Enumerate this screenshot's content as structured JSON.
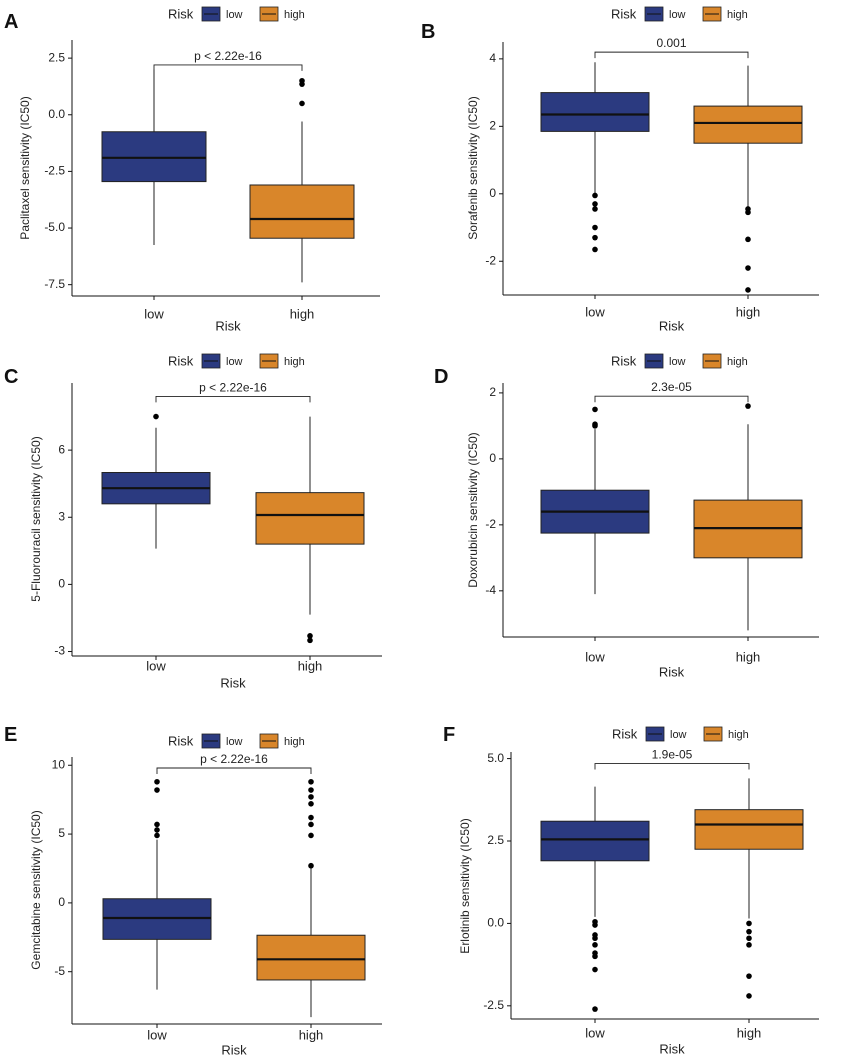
{
  "figure": {
    "legend": {
      "title": "Risk",
      "items": [
        {
          "label": "low",
          "color": "#2B3A80"
        },
        {
          "label": "high",
          "color": "#D9862A"
        }
      ]
    }
  },
  "chart_data": [
    {
      "panel": "A",
      "type": "boxplot",
      "ylabel": "Paclitaxel sensitivity (IC50)",
      "xlabel": "Risk",
      "categories": [
        "low",
        "high"
      ],
      "ylim": [
        -8.0,
        3.3
      ],
      "yticks": [
        -7.5,
        -5.0,
        -2.5,
        0.0,
        2.5
      ],
      "ytick_labels": [
        "-7.5",
        "-5.0",
        "-2.5",
        "0.0",
        "2.5"
      ],
      "pvalue": "p < 2.22e-16",
      "bracket_y": 2.2,
      "boxes": [
        {
          "group": "low",
          "whisker_low": -5.75,
          "q1": -2.95,
          "median": -1.9,
          "q3": -0.75,
          "whisker_high": 2.0,
          "outliers": []
        },
        {
          "group": "high",
          "whisker_low": -7.4,
          "q1": -5.45,
          "median": -4.6,
          "q3": -3.1,
          "whisker_high": -0.3,
          "outliers": [
            0.5,
            1.35,
            1.5
          ]
        }
      ]
    },
    {
      "panel": "B",
      "type": "boxplot",
      "ylabel": "Sorafenib sensitivity (IC50)",
      "xlabel": "Risk",
      "categories": [
        "low",
        "high"
      ],
      "ylim": [
        -3.0,
        4.5
      ],
      "yticks": [
        -2,
        0,
        2,
        4
      ],
      "ytick_labels": [
        "-2",
        "0",
        "2",
        "4"
      ],
      "pvalue": "0.001",
      "bracket_y": 4.2,
      "boxes": [
        {
          "group": "low",
          "whisker_low": -0.05,
          "q1": 1.85,
          "median": 2.35,
          "q3": 3.0,
          "whisker_high": 3.9,
          "outliers": [
            -0.05,
            -0.3,
            -0.45,
            -1.0,
            -1.3,
            -1.65
          ]
        },
        {
          "group": "high",
          "whisker_low": -0.5,
          "q1": 1.5,
          "median": 2.1,
          "q3": 2.6,
          "whisker_high": 3.8,
          "outliers": [
            -0.45,
            -0.55,
            -1.35,
            -2.2,
            -2.85
          ]
        }
      ]
    },
    {
      "panel": "C",
      "type": "boxplot",
      "ylabel": "5-Fluorouracil sensitivity (IC50)",
      "xlabel": "Risk",
      "categories": [
        "low",
        "high"
      ],
      "ylim": [
        -3.2,
        9.0
      ],
      "yticks": [
        -3,
        0,
        3,
        6
      ],
      "ytick_labels": [
        "-3",
        "0",
        "3",
        "6"
      ],
      "pvalue": "p < 2.22e-16",
      "bracket_y": 8.4,
      "boxes": [
        {
          "group": "low",
          "whisker_low": 1.6,
          "q1": 3.6,
          "median": 4.3,
          "q3": 5.0,
          "whisker_high": 7.0,
          "outliers": [
            7.5
          ]
        },
        {
          "group": "high",
          "whisker_low": -1.35,
          "q1": 1.8,
          "median": 3.1,
          "q3": 4.1,
          "whisker_high": 7.5,
          "outliers": [
            -2.3,
            -2.5
          ]
        }
      ]
    },
    {
      "panel": "D",
      "type": "boxplot",
      "ylabel": "Doxorubicin sensitivity (IC50)",
      "xlabel": "Risk",
      "categories": [
        "low",
        "high"
      ],
      "ylim": [
        -5.4,
        2.3
      ],
      "yticks": [
        -4,
        -2,
        0,
        2
      ],
      "ytick_labels": [
        "-4",
        "-2",
        "0",
        "2"
      ],
      "pvalue": "2.3e-05",
      "bracket_y": 1.9,
      "boxes": [
        {
          "group": "low",
          "whisker_low": -4.1,
          "q1": -2.25,
          "median": -1.6,
          "q3": -0.95,
          "whisker_high": 0.9,
          "outliers": [
            1.0,
            1.05,
            1.5
          ]
        },
        {
          "group": "high",
          "whisker_low": -5.2,
          "q1": -3.0,
          "median": -2.1,
          "q3": -1.25,
          "whisker_high": 1.05,
          "outliers": [
            1.6
          ]
        }
      ]
    },
    {
      "panel": "E",
      "type": "boxplot",
      "ylabel": "Gemcitabine sensitivity (IC50)",
      "xlabel": "Risk",
      "categories": [
        "low",
        "high"
      ],
      "ylim": [
        -8.8,
        10.6
      ],
      "yticks": [
        -5,
        0,
        5,
        10
      ],
      "ytick_labels": [
        "-5",
        "0",
        "5",
        "10"
      ],
      "pvalue": "p < 2.22e-16",
      "bracket_y": 9.8,
      "boxes": [
        {
          "group": "low",
          "whisker_low": -6.3,
          "q1": -2.65,
          "median": -1.1,
          "q3": 0.3,
          "whisker_high": 4.6,
          "outliers": [
            4.9,
            5.3,
            5.7,
            8.2,
            8.8
          ]
        },
        {
          "group": "high",
          "whisker_low": -8.3,
          "q1": -5.6,
          "median": -4.1,
          "q3": -2.35,
          "whisker_high": 2.7,
          "outliers": [
            2.7,
            4.9,
            5.7,
            6.2,
            7.2,
            7.7,
            8.2,
            8.8
          ]
        }
      ]
    },
    {
      "panel": "F",
      "type": "boxplot",
      "ylabel": "Erlotinib sensitivity (IC50)",
      "xlabel": "Risk",
      "categories": [
        "low",
        "high"
      ],
      "ylim": [
        -2.9,
        5.2
      ],
      "yticks": [
        -2.5,
        0.0,
        2.5,
        5.0
      ],
      "ytick_labels": [
        "-2.5",
        "0.0",
        "2.5",
        "5.0"
      ],
      "pvalue": "1.9e-05",
      "bracket_y": 4.85,
      "boxes": [
        {
          "group": "low",
          "whisker_low": 0.2,
          "q1": 1.9,
          "median": 2.55,
          "q3": 3.1,
          "whisker_high": 4.15,
          "outliers": [
            0.05,
            -0.05,
            -0.35,
            -0.45,
            -0.65,
            -0.9,
            -1.0,
            -1.4,
            -2.6
          ]
        },
        {
          "group": "high",
          "whisker_low": 0.15,
          "q1": 2.25,
          "median": 3.0,
          "q3": 3.45,
          "whisker_high": 4.4,
          "outliers": [
            0.0,
            -0.25,
            -0.45,
            -0.65,
            -1.6,
            -2.2
          ]
        }
      ]
    }
  ]
}
